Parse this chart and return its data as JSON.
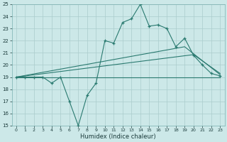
{
  "xlabel": "Humidex (Indice chaleur)",
  "background_color": "#cce8e8",
  "grid_color": "#aacccc",
  "line_color": "#2a7a70",
  "xlim": [
    -0.5,
    23.5
  ],
  "ylim": [
    15,
    25
  ],
  "xticks": [
    0,
    1,
    2,
    3,
    4,
    5,
    6,
    7,
    8,
    9,
    10,
    11,
    12,
    13,
    14,
    15,
    16,
    17,
    18,
    19,
    20,
    21,
    22,
    23
  ],
  "yticks": [
    15,
    16,
    17,
    18,
    19,
    20,
    21,
    22,
    23,
    24,
    25
  ],
  "main": {
    "x": [
      0,
      1,
      2,
      3,
      4,
      5,
      6,
      7,
      8,
      9,
      10,
      11,
      12,
      13,
      14,
      15,
      16,
      17,
      18,
      19,
      20,
      21,
      22,
      23
    ],
    "y": [
      19,
      19,
      19,
      19,
      18.5,
      19,
      17,
      15,
      17.5,
      18.5,
      22,
      21.8,
      23.5,
      23.8,
      25,
      23.2,
      23.3,
      23,
      21.5,
      22.2,
      20.8,
      20,
      19.3,
      19.1
    ]
  },
  "trend1": {
    "x": [
      0,
      23
    ],
    "y": [
      19,
      19.0
    ]
  },
  "trend2": {
    "x": [
      0,
      20,
      23
    ],
    "y": [
      19,
      20.85,
      19.3
    ]
  },
  "trend3": {
    "x": [
      0,
      19,
      23
    ],
    "y": [
      19,
      21.5,
      19.2
    ]
  }
}
